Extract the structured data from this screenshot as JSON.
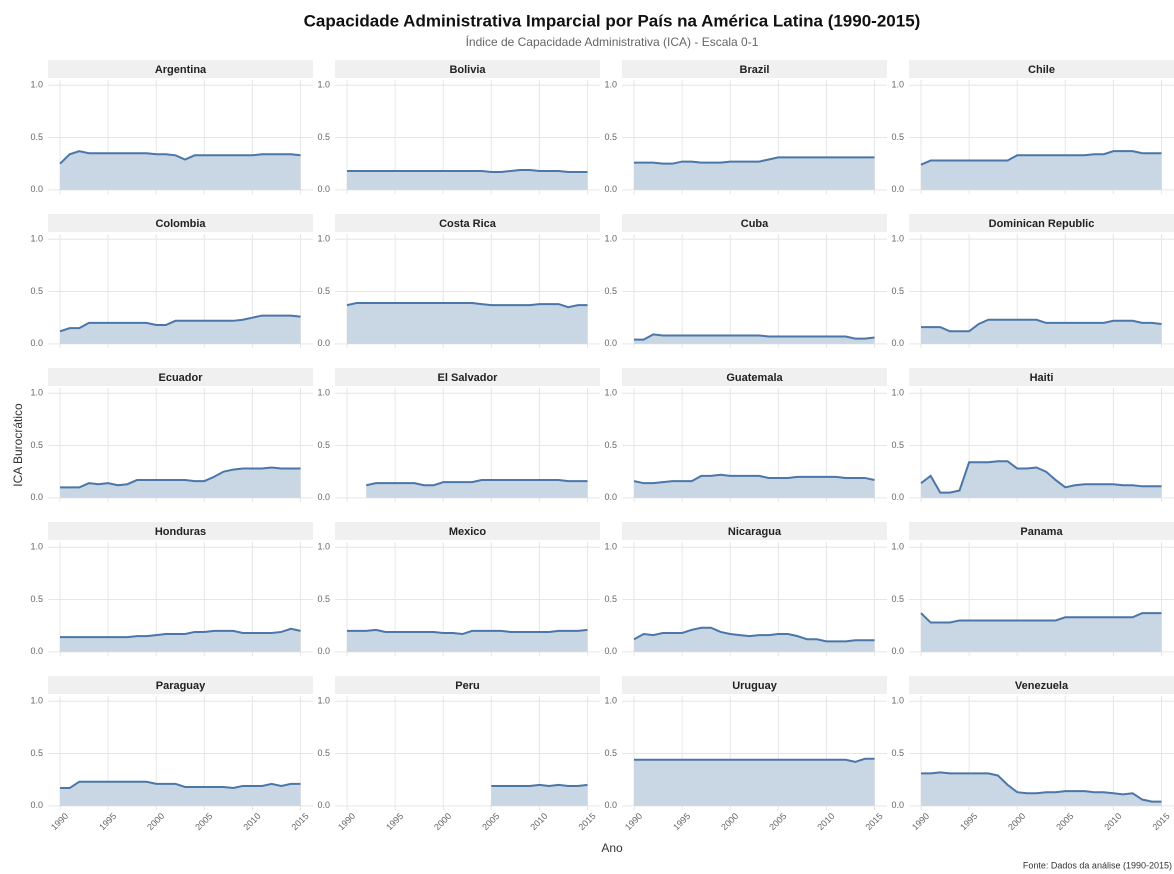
{
  "chart_data": {
    "type": "area",
    "title": "Capacidade Administrativa Imparcial por País na América Latina (1990-2015)",
    "subtitle": "Índice de Capacidade Administrativa (ICA) - Escala 0-1",
    "ylabel": "ICA Burocrático",
    "xlabel": "Ano",
    "caption": "Fonte: Dados da análise (1990-2015)",
    "color": "#4a76a8",
    "fill_color": "#c9d6e3",
    "grid": true,
    "xlim": [
      1988.75,
      2016.3
    ],
    "ylim": [
      -0.04,
      1.05
    ],
    "xticks": [
      1990,
      1995,
      2000,
      2005,
      2010,
      2015
    ],
    "yticks": [
      {
        "value": 0,
        "label": "0.0"
      },
      0.5,
      {
        "value": 1,
        "label": "1.0"
      }
    ],
    "x": [
      1990,
      1991,
      1992,
      1993,
      1994,
      1995,
      1996,
      1997,
      1998,
      1999,
      2000,
      2001,
      2002,
      2003,
      2004,
      2005,
      2006,
      2007,
      2008,
      2009,
      2010,
      2011,
      2012,
      2013,
      2014,
      2015
    ],
    "series": [
      {
        "name": "Argentina",
        "values": [
          0.25,
          0.34,
          0.37,
          0.35,
          0.35,
          0.35,
          0.35,
          0.35,
          0.35,
          0.35,
          0.34,
          0.34,
          0.33,
          0.29,
          0.33,
          0.33,
          0.33,
          0.33,
          0.33,
          0.33,
          0.33,
          0.34,
          0.34,
          0.34,
          0.34,
          0.33
        ]
      },
      {
        "name": "Bolivia",
        "values": [
          0.18,
          0.18,
          0.18,
          0.18,
          0.18,
          0.18,
          0.18,
          0.18,
          0.18,
          0.18,
          0.18,
          0.18,
          0.18,
          0.18,
          0.18,
          0.17,
          0.17,
          0.18,
          0.19,
          0.19,
          0.18,
          0.18,
          0.18,
          0.17,
          0.17,
          0.17
        ]
      },
      {
        "name": "Brazil",
        "values": [
          0.26,
          0.26,
          0.26,
          0.25,
          0.25,
          0.27,
          0.27,
          0.26,
          0.26,
          0.26,
          0.27,
          0.27,
          0.27,
          0.27,
          0.29,
          0.31,
          0.31,
          0.31,
          0.31,
          0.31,
          0.31,
          0.31,
          0.31,
          0.31,
          0.31,
          0.31
        ]
      },
      {
        "name": "Chile",
        "values": [
          0.24,
          0.28,
          0.28,
          0.28,
          0.28,
          0.28,
          0.28,
          0.28,
          0.28,
          0.28,
          0.33,
          0.33,
          0.33,
          0.33,
          0.33,
          0.33,
          0.33,
          0.33,
          0.34,
          0.34,
          0.37,
          0.37,
          0.37,
          0.35,
          0.35,
          0.35
        ]
      },
      {
        "name": "Colombia",
        "values": [
          0.12,
          0.15,
          0.15,
          0.2,
          0.2,
          0.2,
          0.2,
          0.2,
          0.2,
          0.2,
          0.18,
          0.18,
          0.22,
          0.22,
          0.22,
          0.22,
          0.22,
          0.22,
          0.22,
          0.23,
          0.25,
          0.27,
          0.27,
          0.27,
          0.27,
          0.26
        ]
      },
      {
        "name": "Costa Rica",
        "values": [
          0.37,
          0.39,
          0.39,
          0.39,
          0.39,
          0.39,
          0.39,
          0.39,
          0.39,
          0.39,
          0.39,
          0.39,
          0.39,
          0.39,
          0.38,
          0.37,
          0.37,
          0.37,
          0.37,
          0.37,
          0.38,
          0.38,
          0.38,
          0.35,
          0.37,
          0.37
        ]
      },
      {
        "name": "Cuba",
        "values": [
          0.04,
          0.04,
          0.09,
          0.08,
          0.08,
          0.08,
          0.08,
          0.08,
          0.08,
          0.08,
          0.08,
          0.08,
          0.08,
          0.08,
          0.07,
          0.07,
          0.07,
          0.07,
          0.07,
          0.07,
          0.07,
          0.07,
          0.07,
          0.05,
          0.05,
          0.06
        ]
      },
      {
        "name": "Dominican Republic",
        "values": [
          0.16,
          0.16,
          0.16,
          0.12,
          0.12,
          0.12,
          0.19,
          0.23,
          0.23,
          0.23,
          0.23,
          0.23,
          0.23,
          0.2,
          0.2,
          0.2,
          0.2,
          0.2,
          0.2,
          0.2,
          0.22,
          0.22,
          0.22,
          0.2,
          0.2,
          0.19
        ]
      },
      {
        "name": "Ecuador",
        "values": [
          0.1,
          0.1,
          0.1,
          0.14,
          0.13,
          0.14,
          0.12,
          0.13,
          0.17,
          0.17,
          0.17,
          0.17,
          0.17,
          0.17,
          0.16,
          0.16,
          0.2,
          0.25,
          0.27,
          0.28,
          0.28,
          0.28,
          0.29,
          0.28,
          0.28,
          0.28
        ]
      },
      {
        "name": "El Salvador",
        "values": [
          null,
          null,
          0.12,
          0.14,
          0.14,
          0.14,
          0.14,
          0.14,
          0.12,
          0.12,
          0.15,
          0.15,
          0.15,
          0.15,
          0.17,
          0.17,
          0.17,
          0.17,
          0.17,
          0.17,
          0.17,
          0.17,
          0.17,
          0.16,
          0.16,
          0.16
        ]
      },
      {
        "name": "Guatemala",
        "values": [
          0.16,
          0.14,
          0.14,
          0.15,
          0.16,
          0.16,
          0.16,
          0.21,
          0.21,
          0.22,
          0.21,
          0.21,
          0.21,
          0.21,
          0.19,
          0.19,
          0.19,
          0.2,
          0.2,
          0.2,
          0.2,
          0.2,
          0.19,
          0.19,
          0.19,
          0.17
        ]
      },
      {
        "name": "Haiti",
        "values": [
          0.14,
          0.21,
          0.05,
          0.05,
          0.07,
          0.34,
          0.34,
          0.34,
          0.35,
          0.35,
          0.28,
          0.28,
          0.29,
          0.25,
          0.17,
          0.1,
          0.12,
          0.13,
          0.13,
          0.13,
          0.13,
          0.12,
          0.12,
          0.11,
          0.11,
          0.11
        ]
      },
      {
        "name": "Honduras",
        "values": [
          0.14,
          0.14,
          0.14,
          0.14,
          0.14,
          0.14,
          0.14,
          0.14,
          0.15,
          0.15,
          0.16,
          0.17,
          0.17,
          0.17,
          0.19,
          0.19,
          0.2,
          0.2,
          0.2,
          0.18,
          0.18,
          0.18,
          0.18,
          0.19,
          0.22,
          0.2
        ]
      },
      {
        "name": "Mexico",
        "values": [
          0.2,
          0.2,
          0.2,
          0.21,
          0.19,
          0.19,
          0.19,
          0.19,
          0.19,
          0.19,
          0.18,
          0.18,
          0.17,
          0.2,
          0.2,
          0.2,
          0.2,
          0.19,
          0.19,
          0.19,
          0.19,
          0.19,
          0.2,
          0.2,
          0.2,
          0.21
        ]
      },
      {
        "name": "Nicaragua",
        "values": [
          0.12,
          0.17,
          0.16,
          0.18,
          0.18,
          0.18,
          0.21,
          0.23,
          0.23,
          0.19,
          0.17,
          0.16,
          0.15,
          0.16,
          0.16,
          0.17,
          0.17,
          0.15,
          0.12,
          0.12,
          0.1,
          0.1,
          0.1,
          0.11,
          0.11,
          0.11
        ]
      },
      {
        "name": "Panama",
        "values": [
          0.37,
          0.28,
          0.28,
          0.28,
          0.3,
          0.3,
          0.3,
          0.3,
          0.3,
          0.3,
          0.3,
          0.3,
          0.3,
          0.3,
          0.3,
          0.33,
          0.33,
          0.33,
          0.33,
          0.33,
          0.33,
          0.33,
          0.33,
          0.37,
          0.37,
          0.37
        ]
      },
      {
        "name": "Paraguay",
        "values": [
          0.17,
          0.17,
          0.23,
          0.23,
          0.23,
          0.23,
          0.23,
          0.23,
          0.23,
          0.23,
          0.21,
          0.21,
          0.21,
          0.18,
          0.18,
          0.18,
          0.18,
          0.18,
          0.17,
          0.19,
          0.19,
          0.19,
          0.21,
          0.19,
          0.21,
          0.21
        ]
      },
      {
        "name": "Peru",
        "values": [
          null,
          null,
          null,
          null,
          null,
          null,
          null,
          null,
          null,
          null,
          null,
          null,
          null,
          null,
          null,
          0.19,
          0.19,
          0.19,
          0.19,
          0.19,
          0.2,
          0.19,
          0.2,
          0.19,
          0.19,
          0.2
        ]
      },
      {
        "name": "Uruguay",
        "values": [
          0.44,
          0.44,
          0.44,
          0.44,
          0.44,
          0.44,
          0.44,
          0.44,
          0.44,
          0.44,
          0.44,
          0.44,
          0.44,
          0.44,
          0.44,
          0.44,
          0.44,
          0.44,
          0.44,
          0.44,
          0.44,
          0.44,
          0.44,
          0.42,
          0.45,
          0.45
        ]
      },
      {
        "name": "Venezuela",
        "values": [
          0.31,
          0.31,
          0.32,
          0.31,
          0.31,
          0.31,
          0.31,
          0.31,
          0.29,
          0.2,
          0.13,
          0.12,
          0.12,
          0.13,
          0.13,
          0.14,
          0.14,
          0.14,
          0.13,
          0.13,
          0.12,
          0.11,
          0.12,
          0.06,
          0.04,
          0.04
        ]
      }
    ]
  }
}
